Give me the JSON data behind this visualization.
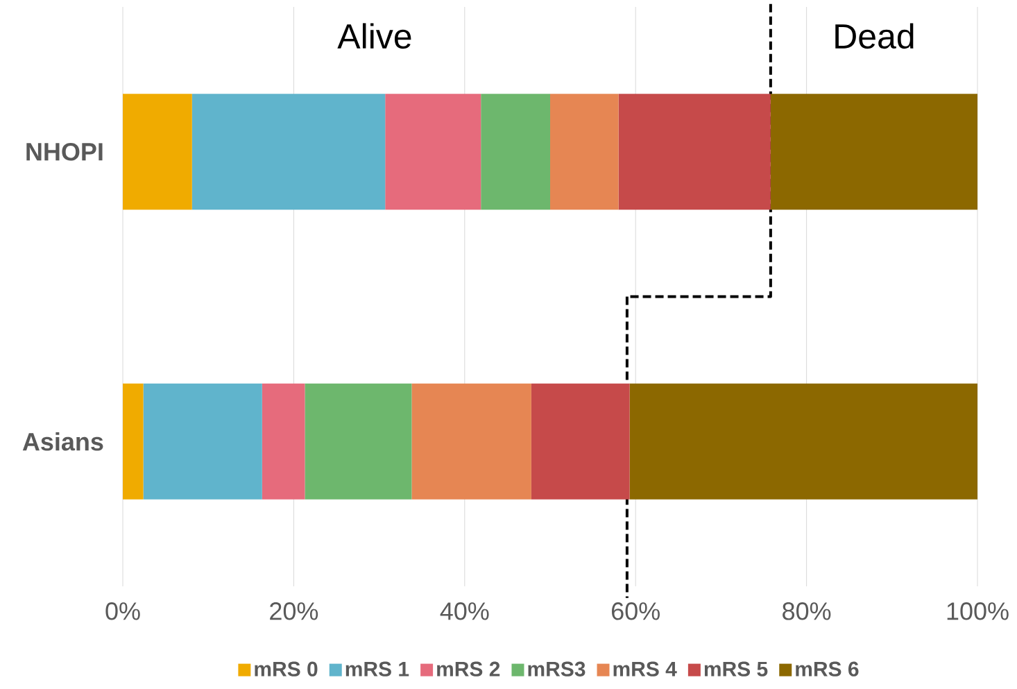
{
  "chart_data": {
    "type": "bar",
    "orientation": "horizontal",
    "stacked": true,
    "categories": [
      "NHOPI",
      "Asians"
    ],
    "series": [
      {
        "name": "mRS 0",
        "color": "#f0ab00",
        "values": [
          8.1,
          2.4
        ]
      },
      {
        "name": "mRS 1",
        "color": "#60b4cc",
        "values": [
          22.6,
          13.9
        ]
      },
      {
        "name": "mRS 2",
        "color": "#e66b7c",
        "values": [
          11.2,
          5.0
        ]
      },
      {
        "name": "mRS3",
        "color": "#6db76d",
        "values": [
          8.1,
          12.5
        ]
      },
      {
        "name": "mRS 4",
        "color": "#e68653",
        "values": [
          8.0,
          14.0
        ]
      },
      {
        "name": "mRS 5",
        "color": "#c64a4a",
        "values": [
          17.8,
          11.5
        ]
      },
      {
        "name": "mRS 6",
        "color": "#8c6800",
        "values": [
          24.2,
          40.7
        ]
      }
    ],
    "xlim": [
      0,
      100
    ],
    "xticks": [
      {
        "value": 0,
        "label": "0%"
      },
      {
        "value": 20,
        "label": "20%"
      },
      {
        "value": 40,
        "label": "40%"
      },
      {
        "value": 60,
        "label": "60%"
      },
      {
        "value": 80,
        "label": "80%"
      },
      {
        "value": 100,
        "label": "100%"
      }
    ],
    "grid": "x",
    "legend": "bottom",
    "annotations": [
      "Alive",
      "Dead"
    ],
    "ref_lines": [
      {
        "axis": "x",
        "value": 75.8,
        "color": "#000000",
        "line_style": "dashed"
      },
      {
        "axis": "x",
        "value": 59.0,
        "color": "#000000",
        "line_style": "dashed"
      }
    ]
  }
}
